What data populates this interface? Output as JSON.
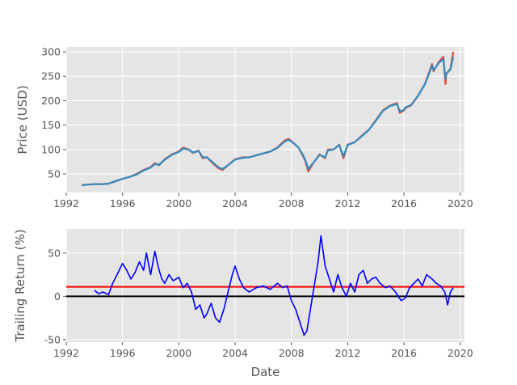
{
  "chart_data": [
    {
      "type": "line",
      "title": "",
      "xlabel": "",
      "ylabel": "Price (USD)",
      "xlim": [
        1992.0,
        2020.3
      ],
      "ylim": [
        12,
        310
      ],
      "xticks": [
        1992,
        1996,
        2000,
        2004,
        2008,
        2012,
        2016,
        2020
      ],
      "yticks": [
        50,
        100,
        150,
        200,
        250,
        300
      ],
      "grid": true,
      "series": [
        {
          "color": "#e24a33",
          "x": [
            1993.1,
            1993.5,
            1994.0,
            1994.5,
            1995.0,
            1995.5,
            1996.0,
            1996.5,
            1997.0,
            1997.5,
            1998.0,
            1998.3,
            1998.6,
            1999.0,
            1999.5,
            2000.0,
            2000.3,
            2000.7,
            2001.0,
            2001.4,
            2001.7,
            2002.0,
            2002.4,
            2002.8,
            2003.1,
            2003.5,
            2004.0,
            2004.5,
            2005.0,
            2005.5,
            2006.0,
            2006.5,
            2007.0,
            2007.5,
            2007.8,
            2008.2,
            2008.5,
            2008.8,
            2009.0,
            2009.2,
            2009.5,
            2010.0,
            2010.4,
            2010.6,
            2011.0,
            2011.4,
            2011.7,
            2012.0,
            2012.5,
            2013.0,
            2013.5,
            2014.0,
            2014.5,
            2015.0,
            2015.5,
            2015.7,
            2016.0,
            2016.1,
            2016.5,
            2017.0,
            2017.5,
            2018.0,
            2018.1,
            2018.5,
            2018.8,
            2018.95,
            2019.0,
            2019.3,
            2019.5
          ],
          "y": [
            27,
            28,
            29,
            29,
            30,
            35,
            40,
            44,
            50,
            58,
            64,
            72,
            68,
            80,
            90,
            96,
            104,
            100,
            93,
            98,
            82,
            84,
            72,
            62,
            58,
            68,
            80,
            84,
            84,
            88,
            92,
            96,
            104,
            118,
            122,
            112,
            104,
            88,
            76,
            55,
            70,
            90,
            82,
            100,
            100,
            110,
            82,
            110,
            115,
            128,
            140,
            160,
            180,
            190,
            195,
            175,
            180,
            185,
            190,
            210,
            235,
            275,
            260,
            280,
            290,
            234,
            255,
            265,
            300
          ]
        },
        {
          "color": "#348abd",
          "x": [
            1993.1,
            1993.5,
            1994.0,
            1994.5,
            1995.0,
            1995.5,
            1996.0,
            1996.5,
            1997.0,
            1997.5,
            1998.0,
            1998.3,
            1998.6,
            1999.0,
            1999.5,
            2000.0,
            2000.3,
            2000.7,
            2001.0,
            2001.4,
            2001.7,
            2002.0,
            2002.4,
            2002.8,
            2003.1,
            2003.5,
            2004.0,
            2004.5,
            2005.0,
            2005.5,
            2006.0,
            2006.5,
            2007.0,
            2007.5,
            2007.8,
            2008.2,
            2008.5,
            2008.8,
            2009.0,
            2009.2,
            2009.5,
            2010.0,
            2010.4,
            2010.6,
            2011.0,
            2011.4,
            2011.7,
            2012.0,
            2012.5,
            2013.0,
            2013.5,
            2014.0,
            2014.5,
            2015.0,
            2015.5,
            2015.7,
            2016.0,
            2016.1,
            2016.5,
            2017.0,
            2017.5,
            2018.0,
            2018.1,
            2018.5,
            2018.8,
            2018.95,
            2019.0,
            2019.3,
            2019.5
          ],
          "y": [
            27,
            28,
            29,
            29,
            30,
            35,
            40,
            44,
            49,
            57,
            63,
            70,
            69,
            79,
            89,
            95,
            102,
            100,
            94,
            97,
            84,
            84,
            74,
            64,
            60,
            68,
            79,
            83,
            84,
            88,
            92,
            96,
            103,
            116,
            120,
            112,
            104,
            90,
            78,
            60,
            71,
            89,
            84,
            98,
            100,
            109,
            86,
            109,
            115,
            127,
            140,
            159,
            179,
            189,
            193,
            178,
            181,
            186,
            191,
            210,
            234,
            272,
            262,
            278,
            285,
            245,
            255,
            264,
            290
          ]
        }
      ]
    },
    {
      "type": "line",
      "title": "",
      "xlabel": "Date",
      "ylabel": "Trailing Return (%)",
      "xlim": [
        1992.0,
        2020.3
      ],
      "ylim": [
        -53,
        78
      ],
      "xticks": [
        1992,
        1996,
        2000,
        2004,
        2008,
        2012,
        2016,
        2020
      ],
      "yticks": [
        -50,
        0,
        50
      ],
      "grid": true,
      "reference_lines": [
        {
          "y": 0,
          "color": "#000000"
        },
        {
          "y": 11,
          "color": "#ff0000"
        }
      ],
      "series": [
        {
          "color": "#0000ff",
          "x": [
            1994.0,
            1994.3,
            1994.6,
            1995.0,
            1995.3,
            1995.7,
            1996.0,
            1996.3,
            1996.6,
            1996.9,
            1997.2,
            1997.5,
            1997.7,
            1998.0,
            1998.3,
            1998.6,
            1998.8,
            1999.0,
            1999.3,
            1999.6,
            2000.0,
            2000.3,
            2000.6,
            2000.9,
            2001.2,
            2001.5,
            2001.8,
            2002.0,
            2002.3,
            2002.6,
            2002.9,
            2003.2,
            2003.5,
            2003.8,
            2004.0,
            2004.3,
            2004.6,
            2005.0,
            2005.5,
            2006.0,
            2006.5,
            2007.0,
            2007.4,
            2007.7,
            2008.0,
            2008.3,
            2008.6,
            2008.9,
            2009.1,
            2009.3,
            2009.6,
            2009.9,
            2010.1,
            2010.4,
            2010.7,
            2011.0,
            2011.3,
            2011.6,
            2011.9,
            2012.2,
            2012.5,
            2012.8,
            2013.1,
            2013.4,
            2013.7,
            2014.0,
            2014.3,
            2014.7,
            2015.0,
            2015.4,
            2015.8,
            2016.1,
            2016.4,
            2016.7,
            2017.0,
            2017.3,
            2017.6,
            2018.0,
            2018.3,
            2018.6,
            2018.9,
            2019.1,
            2019.3,
            2019.5
          ],
          "y": [
            7,
            3,
            5,
            2,
            15,
            28,
            38,
            30,
            20,
            28,
            40,
            30,
            50,
            25,
            52,
            30,
            20,
            15,
            25,
            18,
            22,
            10,
            15,
            5,
            -15,
            -10,
            -25,
            -20,
            -8,
            -25,
            -30,
            -15,
            5,
            25,
            35,
            20,
            10,
            5,
            10,
            12,
            8,
            15,
            10,
            12,
            -5,
            -15,
            -30,
            -45,
            -40,
            -20,
            10,
            40,
            70,
            35,
            20,
            5,
            25,
            10,
            0,
            15,
            5,
            25,
            30,
            15,
            20,
            22,
            15,
            10,
            12,
            5,
            -5,
            -2,
            10,
            15,
            20,
            12,
            25,
            20,
            15,
            12,
            5,
            -10,
            5,
            10
          ]
        }
      ]
    }
  ]
}
